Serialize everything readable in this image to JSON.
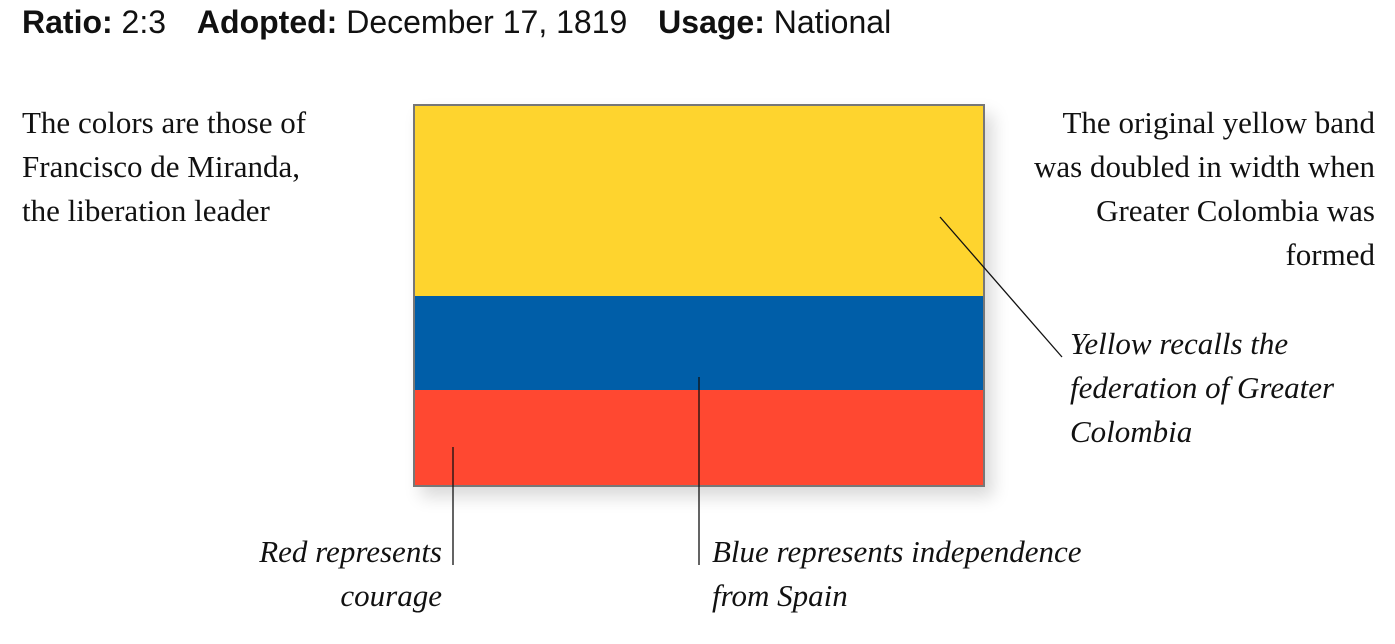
{
  "header": {
    "ratio_label": "Ratio:",
    "ratio_value": "2:3",
    "adopted_label": "Adopted:",
    "adopted_value": "December 17, 1819",
    "usage_label": "Usage:",
    "usage_value": "National"
  },
  "notes": {
    "left": "The colors are those of Francisco de Miranda, the liberation leader",
    "right": "The original yellow band was doubled in width when Greater Colombia was formed",
    "yellow": "Yellow recalls the federation of Greater Colombia",
    "red": "Red represents courage",
    "blue": "Blue represents independence from Spain"
  },
  "flag": {
    "bands": [
      {
        "color": "#FED42E",
        "fraction": 0.5
      },
      {
        "color": "#005EA8",
        "fraction": 0.25
      },
      {
        "color": "#FF4831",
        "fraction": 0.25
      }
    ]
  }
}
